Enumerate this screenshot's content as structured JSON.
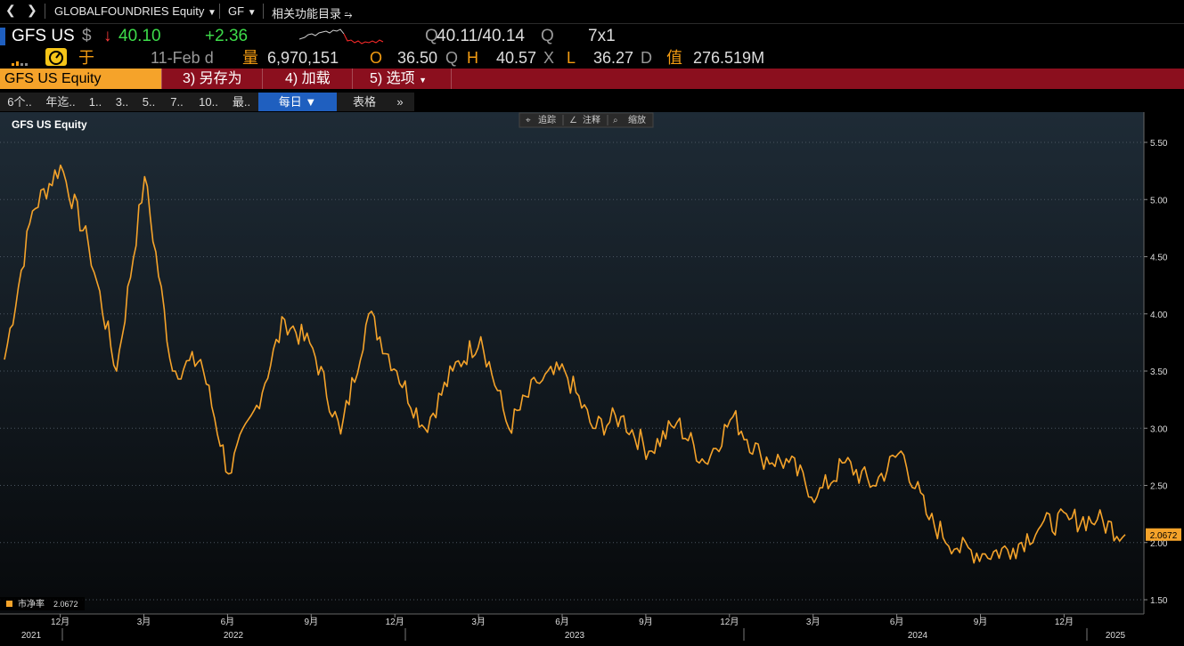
{
  "nav": {
    "back_icon": "chevron-left-icon",
    "forward_icon": "chevron-right-icon",
    "security": "GLOBALFOUNDRIES Equity",
    "ticker_menu": "GF",
    "related": "相关功能目录"
  },
  "quote": {
    "ticker": "GFS US",
    "currency": "$",
    "direction": "↓",
    "price": "40.10",
    "change": "+2.36",
    "bid_prefix": "Q",
    "bid_ask": "40.11/40.14",
    "ask_suffix": "Q",
    "size": "7x1",
    "gain_label": "于",
    "date": "11-Feb d",
    "vol_label": "量",
    "volume": "6,970,151",
    "open_label": "O",
    "open": "36.50",
    "open_suffix": "Q",
    "high_label": "H",
    "high": "40.57",
    "high_suffix": "X",
    "low_label": "L",
    "low": "36.27",
    "low_suffix": "D",
    "value_label": "值",
    "value": "276.519M"
  },
  "menu": {
    "security": "GFS US Equity",
    "save_as": "3) 另存为",
    "load": "4) 加载",
    "options": "5) 选项"
  },
  "tabs": [
    "6个..",
    "年迄..",
    "1..",
    "3..",
    "5..",
    "7..",
    "10..",
    "最..",
    "每日 ▼",
    "表格",
    "»"
  ],
  "toolbar": {
    "track": "追踪",
    "annotate": "注释",
    "zoom": "缩放"
  },
  "colors": {
    "line": "#f5a32a",
    "accent": "#f39c12",
    "menu": "#8b0f1e",
    "active_tab": "#1f5fbf"
  },
  "chart_data": {
    "type": "line",
    "title": "GFS US Equity",
    "xlabel": "",
    "ylabel": "",
    "ylim": [
      1.5,
      5.5
    ],
    "yticks": [
      "5.50",
      "5.00",
      "4.50",
      "4.00",
      "3.50",
      "3.00",
      "2.50",
      "2.00",
      "1.50"
    ],
    "month_ticks": [
      "12月",
      "3月",
      "6月",
      "9月",
      "12月",
      "3月",
      "6月",
      "9月",
      "12月",
      "3月",
      "6月",
      "9月",
      "12月"
    ],
    "year_ticks": [
      "2021",
      "2022",
      "2023",
      "2024",
      "2025"
    ],
    "grid": true,
    "legend_position": "bottom-left",
    "series": [
      {
        "name": "市净率",
        "last_label": "2.0672",
        "x": [
          "2021-10",
          "2021-11",
          "2021-12",
          "2022-01",
          "2022-02",
          "2022-03",
          "2022-04",
          "2022-05",
          "2022-06",
          "2022-07",
          "2022-08",
          "2022-09",
          "2022-10",
          "2022-11",
          "2022-12",
          "2023-01",
          "2023-02",
          "2023-03",
          "2023-04",
          "2023-05",
          "2023-06",
          "2023-07",
          "2023-08",
          "2023-09",
          "2023-10",
          "2023-11",
          "2023-12",
          "2024-01",
          "2024-02",
          "2024-03",
          "2024-04",
          "2024-05",
          "2024-06",
          "2024-07",
          "2024-08",
          "2024-09",
          "2024-10",
          "2024-11",
          "2024-12",
          "2025-01",
          "2025-02"
        ],
        "values": [
          3.6,
          4.9,
          5.3,
          4.6,
          3.5,
          5.2,
          3.5,
          3.6,
          2.6,
          3.2,
          3.95,
          3.7,
          2.95,
          4.0,
          3.5,
          3.0,
          3.5,
          3.8,
          3.0,
          3.4,
          3.5,
          3.0,
          3.1,
          2.8,
          3.05,
          2.7,
          3.1,
          2.75,
          2.7,
          2.4,
          2.7,
          2.5,
          2.8,
          2.2,
          1.95,
          1.9,
          1.95,
          2.15,
          2.2,
          2.2,
          2.07
        ]
      }
    ]
  }
}
